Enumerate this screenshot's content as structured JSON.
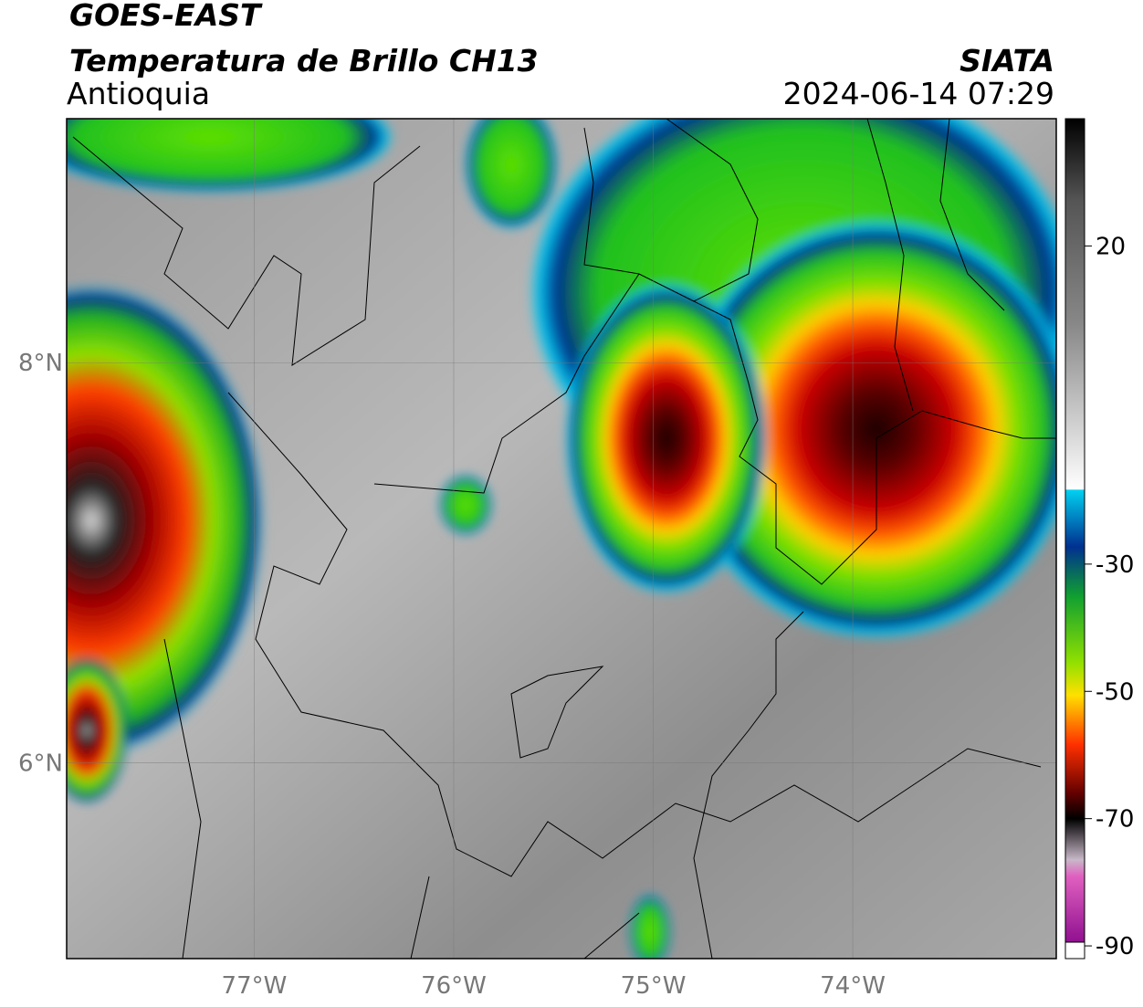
{
  "header": {
    "satellite": "GOES-EAST",
    "product": "Temperatura de Brillo CH13",
    "region": "Antioquia",
    "source": "SIATA",
    "datetime": "2024-06-14 07:29"
  },
  "map": {
    "xlim": [
      -77.94,
      -72.98
    ],
    "ylim": [
      5.02,
      9.22
    ],
    "xticks": [
      {
        "value": -77,
        "label": "77°W"
      },
      {
        "value": -76,
        "label": "76°W"
      },
      {
        "value": -75,
        "label": "75°W"
      },
      {
        "value": -74,
        "label": "74°W"
      }
    ],
    "yticks": [
      {
        "value": 6,
        "label": "6°N"
      },
      {
        "value": 8,
        "label": "8°N"
      }
    ],
    "grid": true
  },
  "colorbar": {
    "clim": [
      -92,
      40
    ],
    "ticks": [
      20,
      -30,
      -50,
      -70,
      -90
    ]
  }
}
